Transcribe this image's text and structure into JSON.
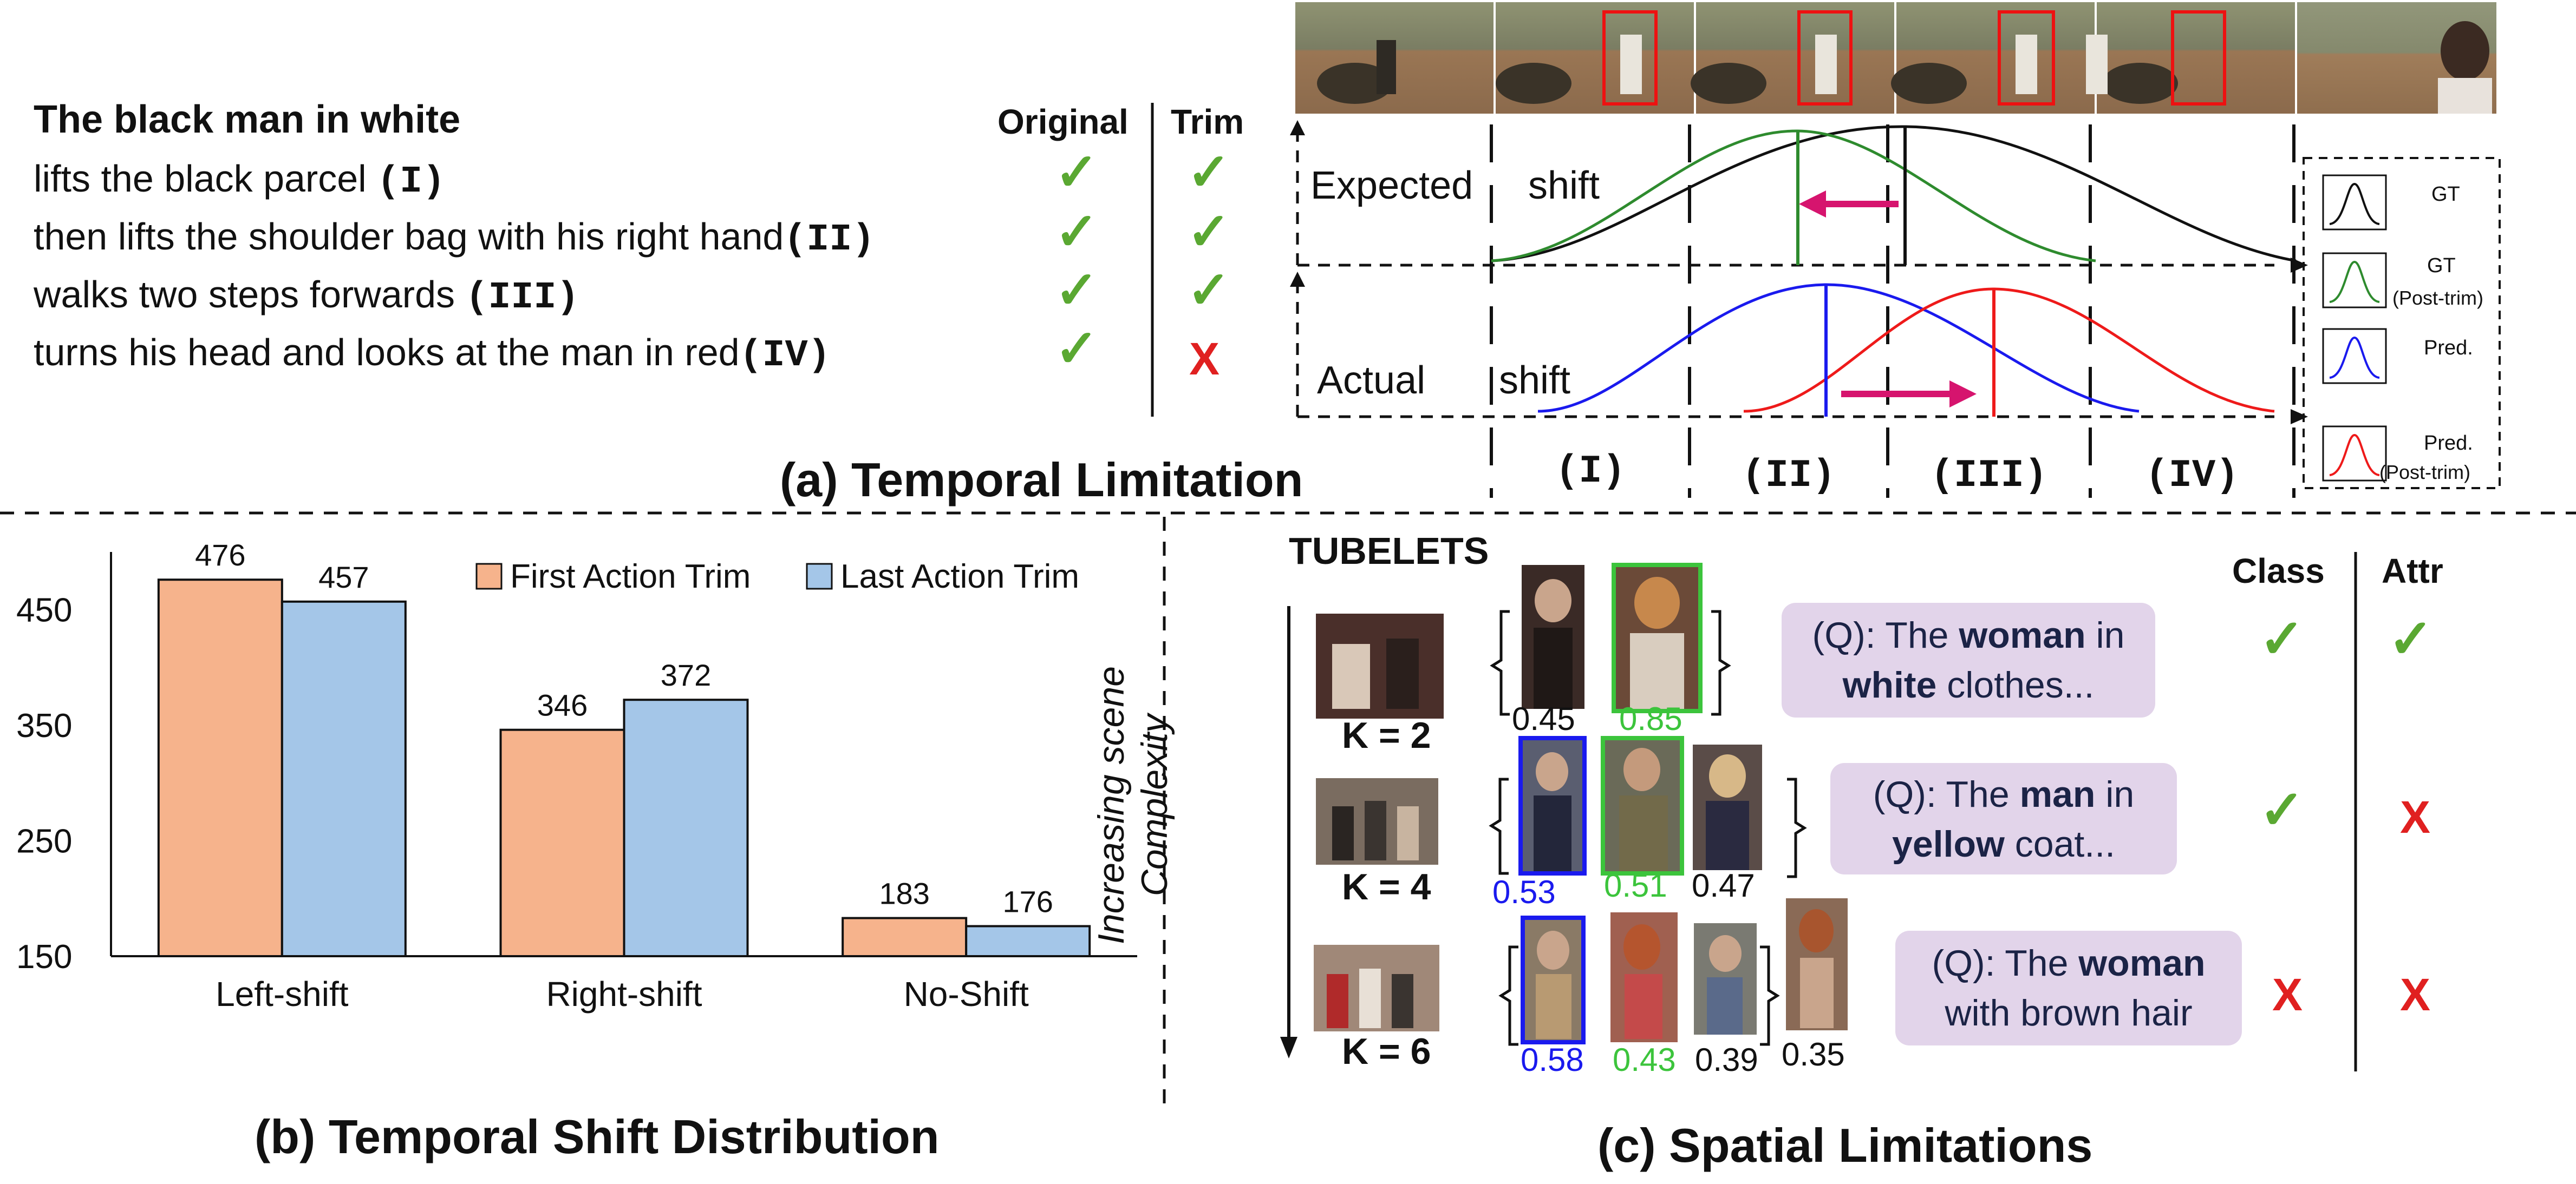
{
  "panel_a": {
    "caption": "(a) Temporal Limitation",
    "query_title": "The black man in white",
    "actions": [
      {
        "text": "lifts the black parcel ",
        "tag": "(I)"
      },
      {
        "text": "then lifts the shoulder bag with his right hand",
        "tag": "(II)"
      },
      {
        "text": "walks two steps forwards ",
        "tag": "(III)"
      },
      {
        "text": "turns his head and looks at the man in red",
        "tag": "(IV)"
      }
    ],
    "col_original": "Original",
    "col_trim": "Trim",
    "marks": {
      "check": "✓",
      "cross": "X"
    },
    "plot": {
      "expected_label": "Expected",
      "expected_shift": "shift",
      "actual_label": "Actual",
      "actual_shift": "shift",
      "segments": [
        "(I)",
        "(II)",
        "(III)",
        "(IV)"
      ]
    },
    "legend": [
      {
        "label": "GT",
        "sub": "",
        "color": "#111111"
      },
      {
        "label": "GT",
        "sub": "(Post-trim)",
        "color": "#2e8b2e"
      },
      {
        "label": "Pred.",
        "sub": "",
        "color": "#1a1aee"
      },
      {
        "label": "Pred.",
        "sub": "(Post-trim)",
        "color": "#ee1a1a"
      }
    ],
    "arrow_color": "#d6146e"
  },
  "panel_b": {
    "caption": "(b) Temporal Shift Distribution",
    "chart_data": {
      "type": "bar",
      "categories": [
        "Left-shift",
        "Right-shift",
        "No-Shift"
      ],
      "series": [
        {
          "name": "First Action Trim",
          "values": [
            476,
            346,
            183
          ],
          "color": "#f6b38c"
        },
        {
          "name": "Last Action Trim",
          "values": [
            457,
            372,
            176
          ],
          "color": "#a4c6e8"
        }
      ],
      "yticks": [
        150,
        250,
        350,
        450
      ],
      "ylim": [
        150,
        500
      ],
      "legend_position": "top-right",
      "grid": false
    }
  },
  "panel_c": {
    "caption": "(c) Spatial Limitations",
    "tubelets_label": "TUBELETS",
    "vertical_axis": [
      "Increasing scene",
      "Complexity"
    ],
    "col_class": "Class",
    "col_attr": "Attr",
    "rows": [
      {
        "k": "K = 2",
        "scores": [
          {
            "v": "0.45",
            "c": "#111111"
          },
          {
            "v": "0.85",
            "c": "#3cc43c"
          }
        ],
        "query": {
          "pre": "(Q): The ",
          "b1": "woman",
          "mid": " in",
          "b2": "white",
          "post": " clothes..."
        },
        "class_mark": "✓",
        "attr_mark": "✓"
      },
      {
        "k": "K = 4",
        "scores": [
          {
            "v": "0.53",
            "c": "#1a1aee"
          },
          {
            "v": "0.51",
            "c": "#3cc43c"
          },
          {
            "v": "0.47",
            "c": "#111111"
          }
        ],
        "query": {
          "pre": "(Q): The ",
          "b1": "man",
          "mid": " in",
          "b2": "yellow",
          "post": " coat..."
        },
        "class_mark": "✓",
        "attr_mark": "X"
      },
      {
        "k": "K = 6",
        "scores": [
          {
            "v": "0.58",
            "c": "#1a1aee"
          },
          {
            "v": "0.43",
            "c": "#3cc43c"
          },
          {
            "v": "0.39",
            "c": "#111111"
          },
          {
            "v": "0.35",
            "c": "#111111"
          }
        ],
        "query": {
          "pre": "(Q): The ",
          "b1": "woman",
          "mid": "",
          "b2": "",
          "post": "with brown hair"
        },
        "class_mark": "X",
        "attr_mark": "X"
      }
    ]
  },
  "colors": {
    "check": "#5aa832",
    "cross": "#e02020",
    "query_box": "#e2d4ea"
  }
}
